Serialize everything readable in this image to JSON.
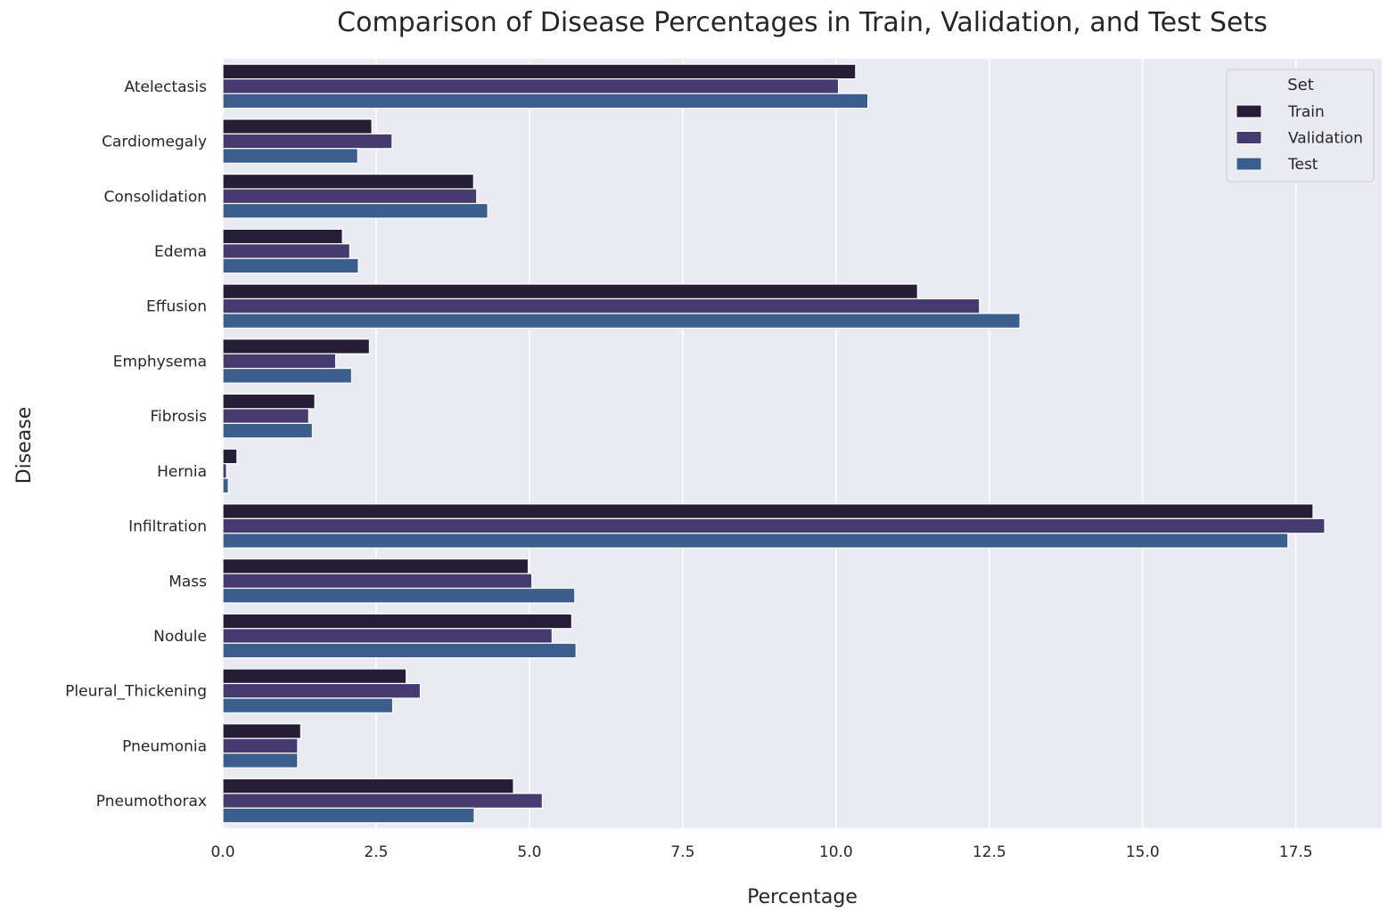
{
  "chart_data": {
    "type": "bar",
    "orientation": "horizontal",
    "title": "Comparison of Disease Percentages in Train, Validation, and Test Sets",
    "xlabel": "Percentage",
    "ylabel": "Disease",
    "xlim": [
      0,
      18.9
    ],
    "xticks": [
      "0.0",
      "2.5",
      "5.0",
      "7.5",
      "10.0",
      "12.5",
      "15.0",
      "17.5"
    ],
    "xtick_values": [
      0,
      2.5,
      5,
      7.5,
      10,
      12.5,
      15,
      17.5
    ],
    "grid": true,
    "legend_title": "Set",
    "legend_position": "top-right",
    "categories": [
      "Atelectasis",
      "Cardiomegaly",
      "Consolidation",
      "Edema",
      "Effusion",
      "Emphysema",
      "Fibrosis",
      "Hernia",
      "Infiltration",
      "Mass",
      "Nodule",
      "Pleural_Thickening",
      "Pneumonia",
      "Pneumothorax"
    ],
    "series": [
      {
        "name": "Train",
        "color": "#261d36",
        "values": [
          10.32,
          2.43,
          4.09,
          1.95,
          11.33,
          2.39,
          1.5,
          0.23,
          17.78,
          4.98,
          5.69,
          2.99,
          1.27,
          4.74
        ]
      },
      {
        "name": "Validation",
        "color": "#463b6e",
        "values": [
          10.04,
          2.76,
          4.14,
          2.07,
          12.34,
          1.84,
          1.4,
          0.06,
          17.97,
          5.04,
          5.37,
          3.22,
          1.22,
          5.21
        ]
      },
      {
        "name": "Test",
        "color": "#3c5e8d",
        "values": [
          10.52,
          2.2,
          4.32,
          2.21,
          13.0,
          2.1,
          1.46,
          0.09,
          17.37,
          5.74,
          5.76,
          2.77,
          1.22,
          4.1
        ]
      }
    ]
  }
}
